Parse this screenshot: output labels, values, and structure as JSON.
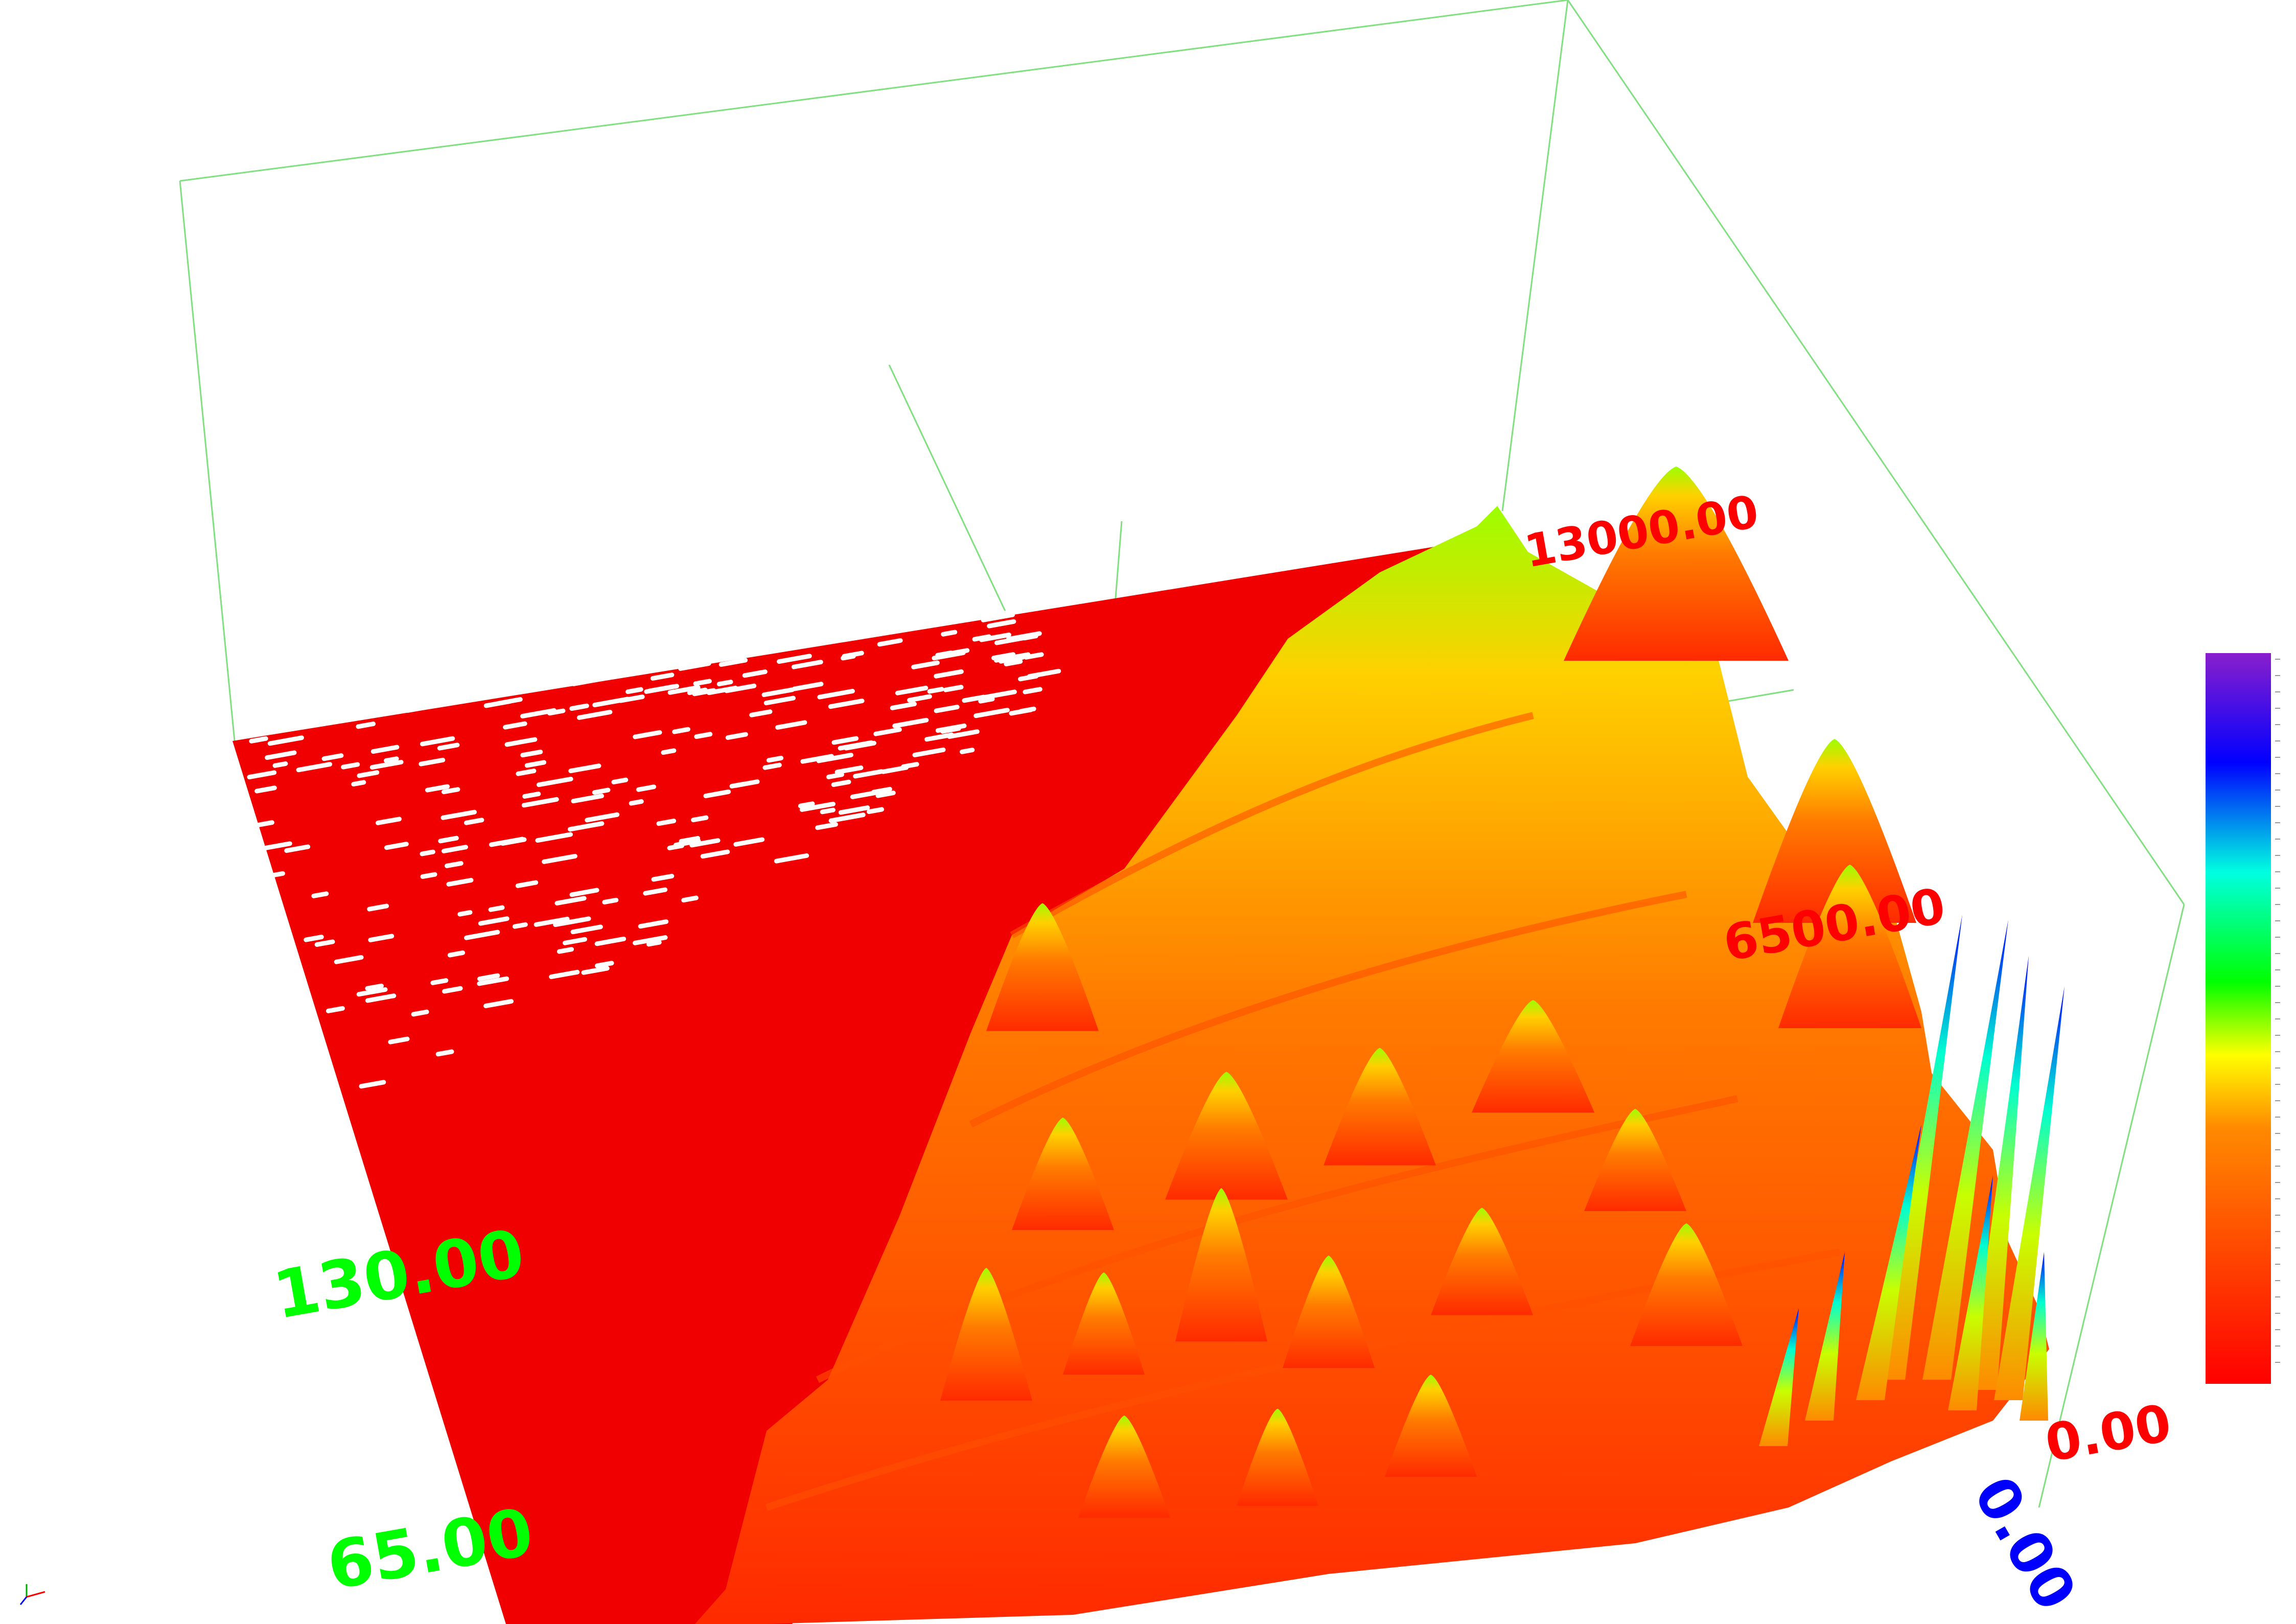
{
  "chart_data": {
    "type": "surface",
    "title": "",
    "axes": {
      "x": {
        "label": "",
        "color": "#ff0000",
        "ticks": [
          "0.00",
          "6500.00",
          "13000.00"
        ],
        "range": [
          0,
          13000
        ]
      },
      "y": {
        "label": "",
        "color": "#00ff00",
        "ticks": [
          "65.00",
          "130.00"
        ],
        "range": [
          0,
          195
        ]
      },
      "z": {
        "label": "",
        "color": "#0000ff",
        "ticks": [
          "0.00"
        ]
      }
    },
    "tick_text": {
      "x_0": "0.00",
      "x_mid": "6500.00",
      "x_max": "13000.00",
      "y_65": "65.00",
      "y_130": "130.00",
      "z_0": "0.00"
    },
    "colormap": [
      "#ff0000",
      "#ff6a00",
      "#ffb000",
      "#ffff00",
      "#7dff00",
      "#00ff00",
      "#00ffd0",
      "#00a0ff",
      "#0000ff",
      "#8a1ecc"
    ],
    "bounding_box_color": "#77dd77",
    "legend": "right",
    "grid": false
  }
}
